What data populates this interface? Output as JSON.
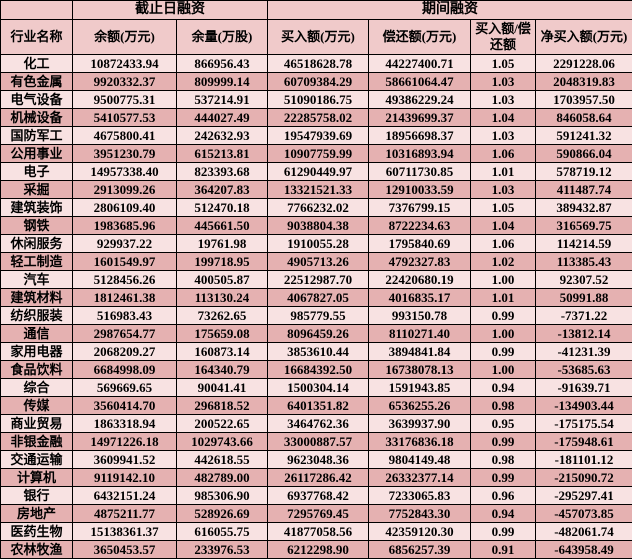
{
  "chart_data": {
    "type": "table",
    "header_groups": {
      "corner": "",
      "cutoff_financing": "截止日融资",
      "period_financing": "期间融资"
    },
    "columns": [
      "行业名称",
      "余额(万元)",
      "余量(万股)",
      "买入额(万元)",
      "偿还额(万元)",
      "买入额/偿还额",
      "净买入额(万元)"
    ],
    "rows": [
      [
        "化工",
        "10872433.94",
        "866956.43",
        "46518628.78",
        "44227400.71",
        "1.05",
        "2291228.06"
      ],
      [
        "有色金属",
        "9920332.37",
        "809999.14",
        "60709384.29",
        "58661064.47",
        "1.03",
        "2048319.83"
      ],
      [
        "电气设备",
        "9500775.31",
        "537214.91",
        "51090186.75",
        "49386229.24",
        "1.03",
        "1703957.50"
      ],
      [
        "机械设备",
        "5410577.53",
        "444027.49",
        "22285758.02",
        "21439699.37",
        "1.04",
        "846058.64"
      ],
      [
        "国防军工",
        "4675800.41",
        "242632.93",
        "19547939.69",
        "18956698.37",
        "1.03",
        "591241.32"
      ],
      [
        "公用事业",
        "3951230.79",
        "615213.81",
        "10907759.99",
        "10316893.94",
        "1.06",
        "590866.04"
      ],
      [
        "电子",
        "14957338.40",
        "823393.68",
        "61290449.97",
        "60711730.85",
        "1.01",
        "578719.12"
      ],
      [
        "采掘",
        "2913099.26",
        "364207.83",
        "13321521.33",
        "12910033.59",
        "1.03",
        "411487.74"
      ],
      [
        "建筑装饰",
        "2806109.40",
        "512470.18",
        "7766232.02",
        "7376799.15",
        "1.05",
        "389432.87"
      ],
      [
        "钢铁",
        "1983685.96",
        "445661.50",
        "9038804.38",
        "8722234.63",
        "1.04",
        "316569.75"
      ],
      [
        "休闲服务",
        "929937.22",
        "19761.98",
        "1910055.28",
        "1795840.69",
        "1.06",
        "114214.59"
      ],
      [
        "轻工制造",
        "1601549.97",
        "199718.95",
        "4905713.26",
        "4792327.83",
        "1.02",
        "113385.43"
      ],
      [
        "汽车",
        "5128456.26",
        "400505.87",
        "22512987.70",
        "22420680.19",
        "1.00",
        "92307.52"
      ],
      [
        "建筑材料",
        "1812461.38",
        "113130.24",
        "4067827.05",
        "4016835.17",
        "1.01",
        "50991.88"
      ],
      [
        "纺织服装",
        "516983.43",
        "73262.65",
        "985779.55",
        "993150.78",
        "0.99",
        "-7371.22"
      ],
      [
        "通信",
        "2987654.77",
        "175659.08",
        "8096459.26",
        "8110271.40",
        "1.00",
        "-13812.14"
      ],
      [
        "家用电器",
        "2068209.27",
        "160873.14",
        "3853610.44",
        "3894841.84",
        "0.99",
        "-41231.39"
      ],
      [
        "食品饮料",
        "6684998.09",
        "164340.79",
        "16684392.50",
        "16738078.13",
        "1.00",
        "-53685.63"
      ],
      [
        "综合",
        "569669.65",
        "90041.41",
        "1500304.14",
        "1591943.85",
        "0.94",
        "-91639.71"
      ],
      [
        "传媒",
        "3560414.70",
        "296818.52",
        "6401351.82",
        "6536255.26",
        "0.98",
        "-134903.44"
      ],
      [
        "商业贸易",
        "1863318.94",
        "200522.65",
        "3464762.36",
        "3639937.90",
        "0.95",
        "-175175.54"
      ],
      [
        "非银金融",
        "14971226.18",
        "1029743.66",
        "33000887.57",
        "33176836.18",
        "0.99",
        "-175948.61"
      ],
      [
        "交通运输",
        "3609941.52",
        "442618.55",
        "9623048.36",
        "9804149.48",
        "0.98",
        "-181101.12"
      ],
      [
        "计算机",
        "9119142.10",
        "482789.00",
        "26117286.42",
        "26332377.14",
        "0.99",
        "-215090.72"
      ],
      [
        "银行",
        "6432151.24",
        "985306.90",
        "6937768.42",
        "7233065.83",
        "0.96",
        "-295297.41"
      ],
      [
        "房地产",
        "4875211.77",
        "528926.69",
        "7295769.45",
        "7752843.30",
        "0.94",
        "-457073.85"
      ],
      [
        "医药生物",
        "15138361.37",
        "616055.75",
        "41877058.56",
        "42359120.30",
        "0.99",
        "-482061.74"
      ],
      [
        "农林牧渔",
        "3650453.57",
        "233976.53",
        "6212298.90",
        "6856257.39",
        "0.91",
        "-643958.49"
      ]
    ],
    "layout_hints": {
      "zebra_striping": true,
      "first_data_row_shade": "light",
      "grid": "on"
    }
  },
  "colors": {
    "header_bg": "#f0caca",
    "row_light": "#f8e2e2",
    "row_dark": "#e5b1b1",
    "border": "#000000",
    "text": "#000000"
  }
}
